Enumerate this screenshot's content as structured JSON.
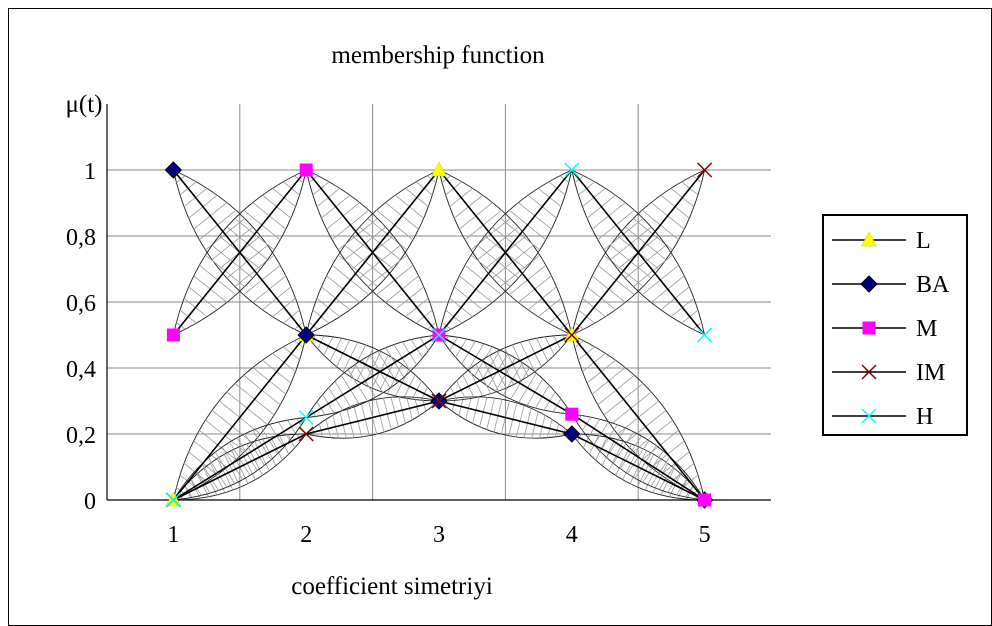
{
  "chart_data": {
    "type": "line",
    "title": "membership function",
    "xlabel": "coefficient simetriyi",
    "ylabel": "μ(t)",
    "x": [
      1,
      2,
      3,
      4,
      5
    ],
    "xlim": [
      0.5,
      5.5
    ],
    "ylim": [
      0,
      1
    ],
    "x_tick_labels": [
      "1",
      "2",
      "3",
      "4",
      "5"
    ],
    "y_ticks": [
      0,
      0.2,
      0.4,
      0.6,
      0.8,
      1
    ],
    "y_tick_labels": [
      "0",
      "0,2",
      "0,4",
      "0,6",
      "0,8",
      "1"
    ],
    "grid": true,
    "legend_position": "right",
    "series": [
      {
        "name": "L",
        "values": [
          0,
          0.5,
          1,
          0.5,
          0
        ],
        "color": "#ffff00",
        "marker": "triangle"
      },
      {
        "name": "BA",
        "values": [
          1,
          0.5,
          0.3,
          0.2,
          0
        ],
        "color": "#000080",
        "marker": "diamond"
      },
      {
        "name": "M",
        "values": [
          0.5,
          1,
          0.5,
          0.26,
          0
        ],
        "color": "#ff00ff",
        "marker": "square"
      },
      {
        "name": "IM",
        "values": [
          0,
          0.2,
          0.3,
          0.5,
          1
        ],
        "color": "#800000",
        "marker": "x"
      },
      {
        "name": "H",
        "values": [
          0,
          0.25,
          0.5,
          1,
          0.5
        ],
        "color": "#00ffff",
        "marker": "x"
      }
    ]
  }
}
